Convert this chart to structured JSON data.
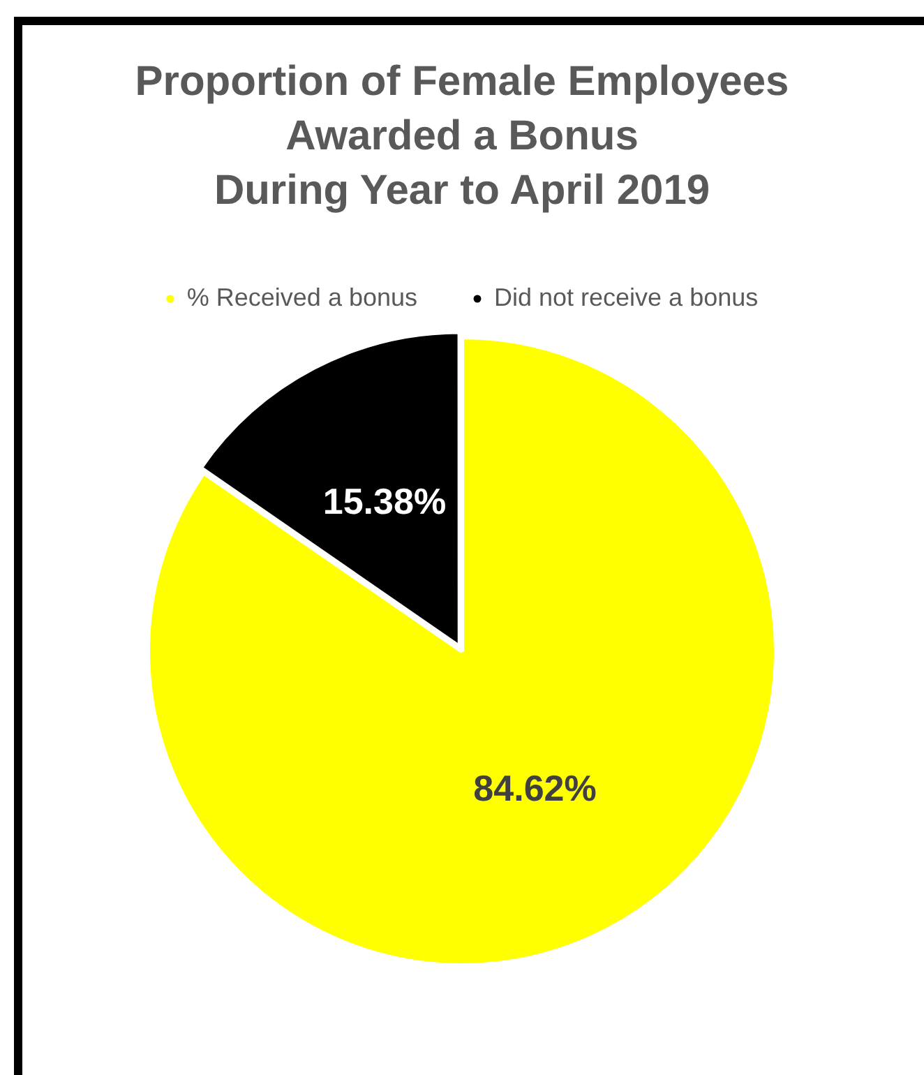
{
  "chart_data": {
    "type": "pie",
    "title": "Proportion of Female Employees\nAwarded a Bonus\nDuring Year to April 2019",
    "categories": [
      "% Received a bonus",
      "Did not receive a bonus"
    ],
    "values": [
      84.62,
      15.38
    ],
    "colors": [
      "#ffff00",
      "#000000"
    ],
    "value_labels": [
      "84.62%",
      "15.38%"
    ],
    "legend": "top"
  }
}
